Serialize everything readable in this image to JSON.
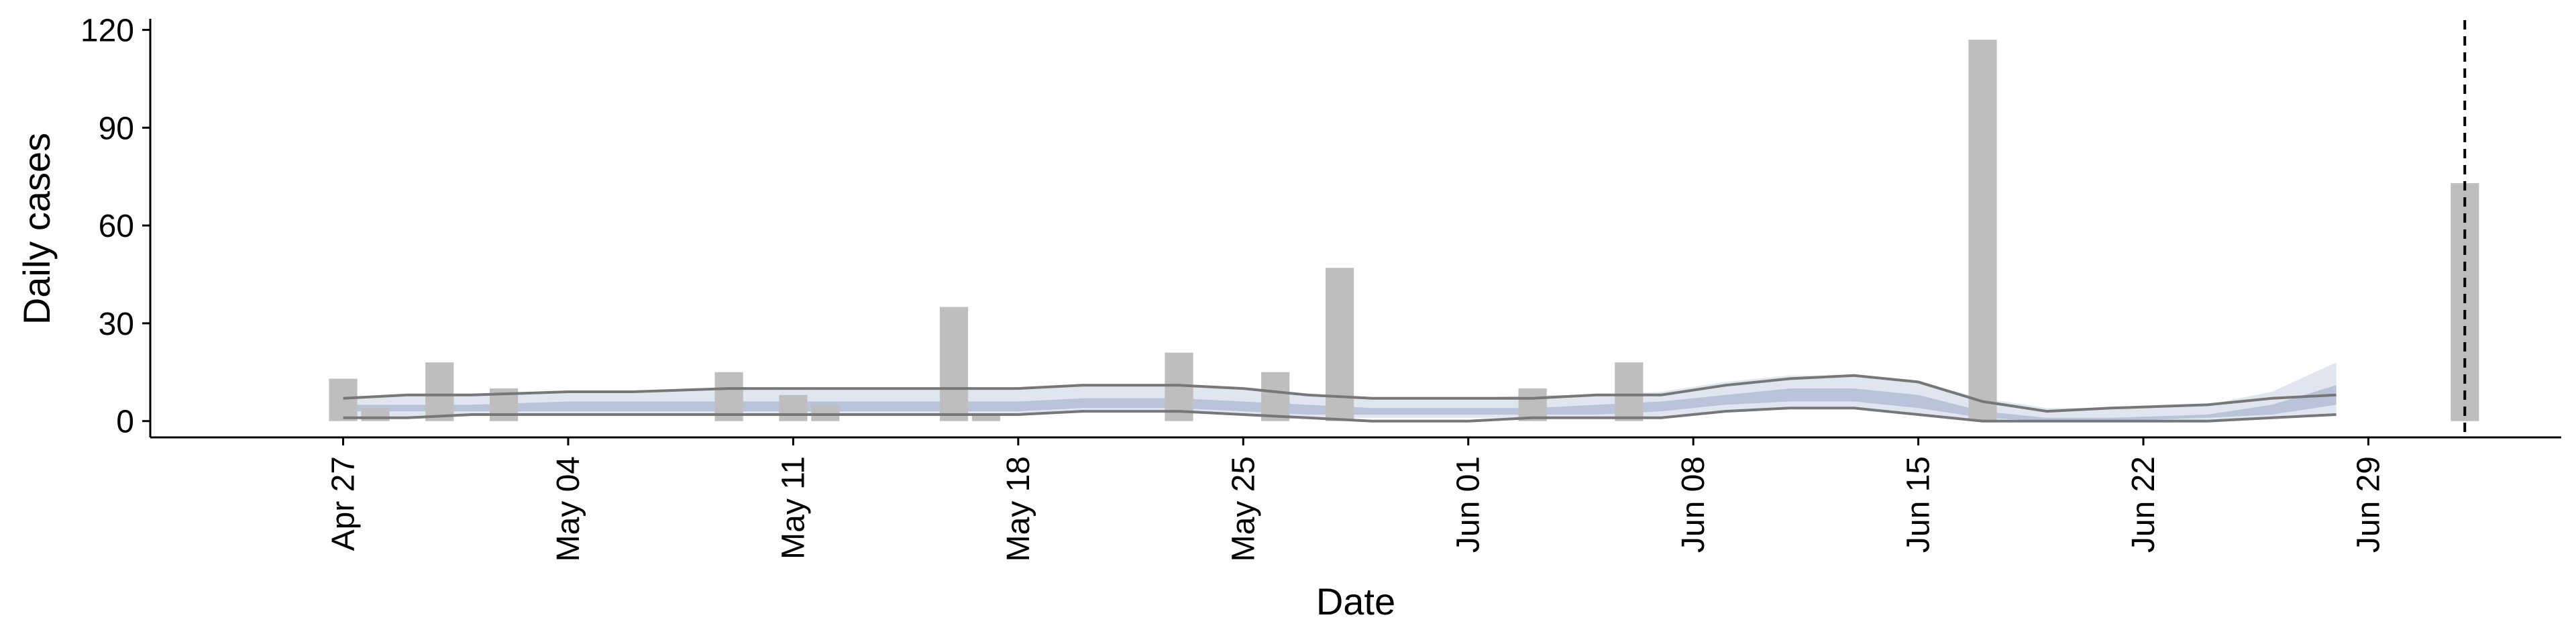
{
  "chart_data": {
    "type": "bar",
    "xlabel": "Date",
    "ylabel": "Daily cases",
    "xlim": [
      "2020-04-21",
      "2020-07-05"
    ],
    "ylim": [
      -5,
      123
    ],
    "x_ticks": [
      "2020-04-27",
      "2020-05-04",
      "2020-05-11",
      "2020-05-18",
      "2020-05-25",
      "2020-06-01",
      "2020-06-08",
      "2020-06-15",
      "2020-06-22",
      "2020-06-29"
    ],
    "x_tick_labels": [
      "Apr 27",
      "May 04",
      "May 11",
      "May 18",
      "May 25",
      "Jun 01",
      "Jun 08",
      "Jun 15",
      "Jun 22",
      "Jun 29"
    ],
    "y_ticks": [
      0,
      30,
      60,
      90,
      120
    ],
    "y_tick_labels": [
      "0",
      "30",
      "60",
      "90",
      "120"
    ],
    "grid": false,
    "reference_line": {
      "x": "2020-07-02",
      "style": "dashed"
    },
    "bars": {
      "color": "#bebebe",
      "data": [
        {
          "x": "2020-04-27",
          "y": 13
        },
        {
          "x": "2020-04-28",
          "y": 4
        },
        {
          "x": "2020-04-30",
          "y": 18
        },
        {
          "x": "2020-05-02",
          "y": 10
        },
        {
          "x": "2020-05-09",
          "y": 15
        },
        {
          "x": "2020-05-11",
          "y": 8
        },
        {
          "x": "2020-05-12",
          "y": 5
        },
        {
          "x": "2020-05-16",
          "y": 35
        },
        {
          "x": "2020-05-17",
          "y": 2
        },
        {
          "x": "2020-05-23",
          "y": 21
        },
        {
          "x": "2020-05-26",
          "y": 15
        },
        {
          "x": "2020-05-28",
          "y": 47
        },
        {
          "x": "2020-06-03",
          "y": 10
        },
        {
          "x": "2020-06-06",
          "y": 18
        },
        {
          "x": "2020-06-17",
          "y": 117
        },
        {
          "x": "2020-07-02",
          "y": 73
        }
      ]
    },
    "estimate": {
      "band_color_inner": "#b5bfd6",
      "band_color_outer": "#dde2ee",
      "line_color": "#777777",
      "x": [
        "2020-04-27",
        "2020-04-29",
        "2020-05-01",
        "2020-05-04",
        "2020-05-06",
        "2020-05-09",
        "2020-05-12",
        "2020-05-14",
        "2020-05-16",
        "2020-05-18",
        "2020-05-20",
        "2020-05-23",
        "2020-05-25",
        "2020-05-27",
        "2020-05-29",
        "2020-06-01",
        "2020-06-03",
        "2020-06-05",
        "2020-06-07",
        "2020-06-09",
        "2020-06-11",
        "2020-06-13",
        "2020-06-15",
        "2020-06-17",
        "2020-06-19",
        "2020-06-21",
        "2020-06-24",
        "2020-06-26",
        "2020-06-28"
      ],
      "upper_90": [
        7,
        8,
        8,
        9,
        9,
        10,
        10,
        10,
        10,
        10,
        11,
        11,
        10,
        8,
        7,
        7,
        8,
        8,
        9,
        12,
        14,
        14,
        12,
        7,
        4,
        4,
        5,
        9,
        18
      ],
      "upper_50": [
        5,
        5,
        5,
        6,
        6,
        6,
        6,
        6,
        6,
        6,
        7,
        7,
        6,
        5,
        4,
        4,
        4,
        5,
        6,
        8,
        10,
        10,
        8,
        3,
        1,
        1,
        2,
        5,
        11
      ],
      "lower_50": [
        3,
        3,
        3,
        3,
        3,
        3,
        3,
        3,
        3,
        3,
        4,
        4,
        3,
        2,
        2,
        2,
        2,
        2,
        3,
        5,
        6,
        6,
        4,
        1,
        0,
        0,
        1,
        2,
        5
      ],
      "lower_90": [
        1,
        1,
        2,
        2,
        2,
        2,
        2,
        2,
        2,
        2,
        3,
        3,
        2,
        1,
        1,
        1,
        1,
        1,
        1,
        3,
        4,
        4,
        2,
        0,
        0,
        0,
        0,
        1,
        2
      ],
      "line_upper": [
        7,
        8,
        8,
        9,
        9,
        10,
        10,
        10,
        10,
        10,
        11,
        11,
        10,
        8,
        7,
        7,
        7,
        8,
        8,
        11,
        13,
        14,
        12,
        6,
        3,
        4,
        5,
        7,
        8
      ],
      "line_lower": [
        1,
        1,
        2,
        2,
        2,
        2,
        2,
        2,
        2,
        2,
        3,
        3,
        2,
        1,
        0,
        0,
        1,
        1,
        1,
        3,
        4,
        4,
        2,
        0,
        0,
        0,
        0,
        1,
        2
      ]
    }
  }
}
